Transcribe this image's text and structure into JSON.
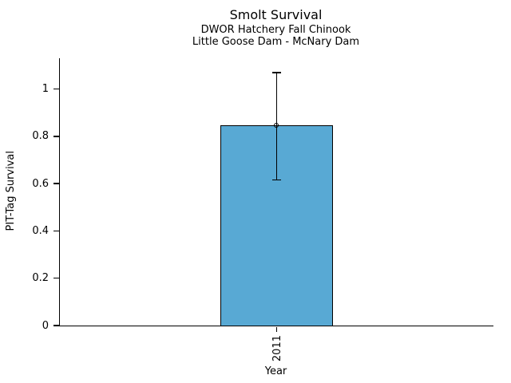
{
  "chart_data": {
    "type": "bar",
    "title": "Smolt Survival",
    "subtitle1": "DWOR Hatchery Fall Chinook",
    "subtitle2": "Little Goose Dam - McNary Dam",
    "xlabel": "Year",
    "ylabel": "PIT-Tag Survival",
    "categories": [
      "2011"
    ],
    "values": [
      0.845
    ],
    "errors_low": [
      0.615
    ],
    "errors_high": [
      1.07
    ],
    "ylim": [
      0,
      1.13
    ],
    "yticks": [
      0,
      0.2,
      0.4,
      0.6,
      0.8,
      1
    ],
    "ytick_labels": [
      "0",
      "0.2",
      "0.4",
      "0.6",
      "0.8",
      "1"
    ],
    "bar_width_fraction": 0.258,
    "grid": false,
    "legend": "none",
    "bar_color": "#58a9d4",
    "bar_edge_color": "#000000",
    "errorbar_color": "#000000",
    "axis_color": "#000000",
    "text_color": "#000000",
    "background_color": "#ffffff"
  }
}
